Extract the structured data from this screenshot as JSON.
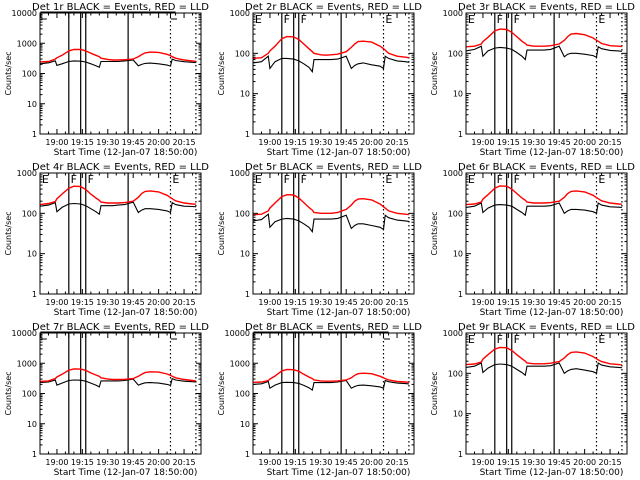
{
  "colors": {
    "events": "#000000",
    "lld": "#ff0000",
    "axes": "#000000",
    "background": "#ffffff"
  },
  "chart_data": {
    "type": "line",
    "layout": "3x3 grid of panels",
    "shared": {
      "xlabel": "Start Time (12-Jan-07 18:50:00)",
      "ylabel": "Counts/sec",
      "x_tick_labels": [
        "19:00",
        "19:15",
        "19:30",
        "19:45",
        "20:00",
        "20:15"
      ],
      "x_tick_minutes": [
        10,
        25,
        40,
        55,
        70,
        85
      ],
      "xlim_minutes_after_start": [
        0,
        95
      ],
      "yscale": "log",
      "legend": "in title: BLACK = Events, RED = LLD",
      "series_names": [
        "Events",
        "LLD"
      ],
      "series_colors": [
        "#000000",
        "#ff0000"
      ],
      "event_lines": {
        "solid_minutes": [
          17,
          24,
          27,
          52
        ],
        "dotted_minutes": [
          77,
          92
        ],
        "markers": [
          {
            "label": "E",
            "minute": 0.5
          },
          {
            "label": "F",
            "minute": 17.5
          },
          {
            "label": "F",
            "minute": 27.5
          },
          {
            "label": "E",
            "minute": 77.5
          }
        ]
      },
      "time_minutes": [
        0,
        5,
        9,
        10,
        13,
        17,
        20,
        24,
        27,
        30,
        33,
        35,
        36,
        40,
        43,
        46,
        50,
        55,
        58,
        60,
        62,
        65,
        70,
        75,
        77,
        78,
        80,
        85,
        90,
        92
      ]
    },
    "panels": [
      {
        "title": "Det 1r BLACK = Events, RED = LLD",
        "ylim": [
          1,
          10000
        ],
        "y_tick_labels": [
          "1",
          "10",
          "100",
          "1000",
          "10000"
        ],
        "show_markers": false,
        "series": [
          {
            "name": "Events",
            "values": [
              210,
              225,
              260,
              185,
              210,
              250,
              260,
              255,
              240,
              210,
              180,
              160,
              250,
              250,
              250,
              250,
              260,
              280,
              180,
              200,
              215,
              220,
              210,
              190,
              175,
              300,
              270,
              245,
              235,
              230
            ]
          },
          {
            "name": "LLD",
            "values": [
              240,
              250,
              300,
              330,
              400,
              560,
              620,
              620,
              560,
              470,
              400,
              360,
              320,
              290,
              280,
              280,
              285,
              300,
              360,
              420,
              480,
              510,
              500,
              430,
              390,
              360,
              320,
              280,
              260,
              250
            ]
          }
        ]
      },
      {
        "title": "Det 2r BLACK = Events, RED = LLD",
        "ylim": [
          1,
          1000
        ],
        "y_tick_labels": [
          "1",
          "10",
          "100",
          "1000"
        ],
        "show_markers": true,
        "series": [
          {
            "name": "Events",
            "values": [
              58,
              62,
              85,
              42,
              62,
              75,
              75,
              72,
              65,
              55,
              45,
              35,
              70,
              70,
              70,
              70,
              72,
              85,
              42,
              50,
              55,
              58,
              52,
              48,
              42,
              85,
              75,
              65,
              62,
              60
            ]
          },
          {
            "name": "LLD",
            "values": [
              75,
              78,
              100,
              115,
              150,
              230,
              260,
              255,
              220,
              170,
              130,
              110,
              100,
              92,
              90,
              92,
              95,
              110,
              140,
              170,
              195,
              200,
              190,
              150,
              130,
              120,
              100,
              85,
              80,
              78
            ]
          }
        ]
      },
      {
        "title": "Det 3r BLACK = Events, RED = LLD",
        "ylim": [
          1,
          1000
        ],
        "y_tick_labels": [
          "1",
          "10",
          "100",
          "1000"
        ],
        "show_markers": true,
        "series": [
          {
            "name": "Events",
            "values": [
              115,
              125,
              150,
              85,
              115,
              135,
              140,
              135,
              125,
              105,
              85,
              70,
              120,
              120,
              120,
              120,
              125,
              150,
              82,
              95,
              100,
              100,
              95,
              88,
              80,
              145,
              130,
              118,
              115,
              112
            ]
          },
          {
            "name": "LLD",
            "values": [
              145,
              150,
              170,
              195,
              250,
              360,
              400,
              390,
              330,
              260,
              200,
              175,
              160,
              150,
              150,
              150,
              155,
              170,
              210,
              260,
              300,
              310,
              290,
              240,
              210,
              200,
              175,
              155,
              150,
              148
            ]
          }
        ]
      },
      {
        "title": "Det 4r BLACK = Events, RED = LLD",
        "ylim": [
          1,
          1000
        ],
        "y_tick_labels": [
          "1",
          "10",
          "100",
          "1000"
        ],
        "show_markers": true,
        "series": [
          {
            "name": "Events",
            "values": [
              150,
              160,
              185,
              110,
              140,
              170,
              175,
              170,
              155,
              130,
              110,
              95,
              155,
              155,
              155,
              160,
              165,
              190,
              105,
              120,
              130,
              130,
              125,
              115,
              105,
              185,
              165,
              150,
              148,
              145
            ]
          },
          {
            "name": "LLD",
            "values": [
              165,
              175,
              195,
              230,
              300,
              420,
              470,
              460,
              390,
              300,
              240,
              210,
              190,
              180,
              180,
              180,
              185,
              200,
              250,
              310,
              350,
              360,
              340,
              280,
              245,
              230,
              205,
              180,
              170,
              168
            ]
          }
        ]
      },
      {
        "title": "Det 5r BLACK = Events, RED = LLD",
        "ylim": [
          1,
          1000
        ],
        "y_tick_labels": [
          "1",
          "10",
          "100",
          "1000"
        ],
        "show_markers": true,
        "series": [
          {
            "name": "Events",
            "values": [
              65,
              70,
              95,
              45,
              62,
              72,
              75,
              72,
              65,
              55,
              45,
              35,
              72,
              72,
              72,
              72,
              75,
              90,
              42,
              50,
              55,
              55,
              50,
              45,
              40,
              90,
              78,
              68,
              65,
              63
            ]
          },
          {
            "name": "LLD",
            "values": [
              92,
              95,
              115,
              135,
              180,
              260,
              290,
              285,
              240,
              185,
              140,
              120,
              105,
              100,
              100,
              100,
              105,
              125,
              160,
              200,
              225,
              230,
              215,
              170,
              145,
              135,
              115,
              100,
              95,
              93
            ]
          }
        ]
      },
      {
        "title": "Det 6r BLACK = Events, RED = LLD",
        "ylim": [
          1,
          1000
        ],
        "y_tick_labels": [
          "1",
          "10",
          "100",
          "1000"
        ],
        "show_markers": true,
        "series": [
          {
            "name": "Events",
            "values": [
              140,
              150,
              180,
              105,
              135,
              160,
              165,
              160,
              150,
              125,
              105,
              90,
              150,
              150,
              150,
              150,
              155,
              180,
              100,
              115,
              125,
              125,
              120,
              110,
              100,
              180,
              160,
              145,
              142,
              140
            ]
          },
          {
            "name": "LLD",
            "values": [
              165,
              170,
              190,
              225,
              290,
              420,
              480,
              470,
              400,
              310,
              240,
              210,
              190,
              180,
              180,
              180,
              185,
              200,
              250,
              310,
              350,
              360,
              340,
              280,
              245,
              230,
              205,
              180,
              170,
              168
            ]
          }
        ]
      },
      {
        "title": "Det 7r BLACK = Events, RED = LLD",
        "ylim": [
          1,
          10000
        ],
        "y_tick_labels": [
          "1",
          "10",
          "100",
          "1000",
          "10000"
        ],
        "show_markers": false,
        "series": [
          {
            "name": "Events",
            "values": [
              230,
              240,
              280,
              190,
              220,
              270,
              280,
              275,
              255,
              220,
              190,
              165,
              260,
              260,
              260,
              260,
              270,
              300,
              190,
              210,
              225,
              230,
              220,
              200,
              185,
              310,
              280,
              255,
              245,
              240
            ]
          },
          {
            "name": "LLD",
            "values": [
              250,
              260,
              310,
              350,
              430,
              590,
              650,
              640,
              580,
              480,
              410,
              370,
              330,
              300,
              290,
              290,
              295,
              310,
              370,
              430,
              490,
              520,
              510,
              440,
              400,
              370,
              330,
              290,
              270,
              260
            ]
          }
        ]
      },
      {
        "title": "Det 8r BLACK = Events, RED = LLD",
        "ylim": [
          1,
          10000
        ],
        "y_tick_labels": [
          "1",
          "10",
          "100",
          "1000",
          "10000"
        ],
        "show_markers": false,
        "series": [
          {
            "name": "Events",
            "values": [
              200,
              210,
              250,
              150,
              190,
              230,
              235,
              230,
              215,
              185,
              155,
              130,
              230,
              230,
              230,
              230,
              240,
              270,
              150,
              170,
              185,
              190,
              180,
              165,
              150,
              270,
              245,
              220,
              212,
              208
            ]
          },
          {
            "name": "LLD",
            "values": [
              235,
              240,
              270,
              300,
              380,
              560,
              620,
              610,
              540,
              430,
              350,
              310,
              280,
              260,
              255,
              255,
              260,
              280,
              330,
              400,
              450,
              470,
              450,
              370,
              330,
              310,
              280,
              250,
              240,
              235
            ]
          }
        ]
      },
      {
        "title": "Det 9r BLACK = Events, RED = LLD",
        "ylim": [
          1,
          1000
        ],
        "y_tick_labels": [
          "1",
          "10",
          "100",
          "1000"
        ],
        "show_markers": true,
        "series": [
          {
            "name": "Events",
            "values": [
              140,
              150,
              180,
              105,
              135,
              165,
              170,
              165,
              150,
              125,
              105,
              90,
              150,
              150,
              150,
              150,
              155,
              180,
              100,
              115,
              125,
              130,
              120,
              110,
              100,
              180,
              160,
              145,
              140,
              138
            ]
          },
          {
            "name": "LLD",
            "values": [
              165,
              170,
              190,
              225,
              290,
              400,
              440,
              430,
              370,
              290,
              230,
              200,
              180,
              172,
              172,
              172,
              178,
              195,
              240,
              290,
              330,
              340,
              320,
              260,
              230,
              215,
              195,
              172,
              165,
              162
            ]
          }
        ]
      }
    ]
  }
}
